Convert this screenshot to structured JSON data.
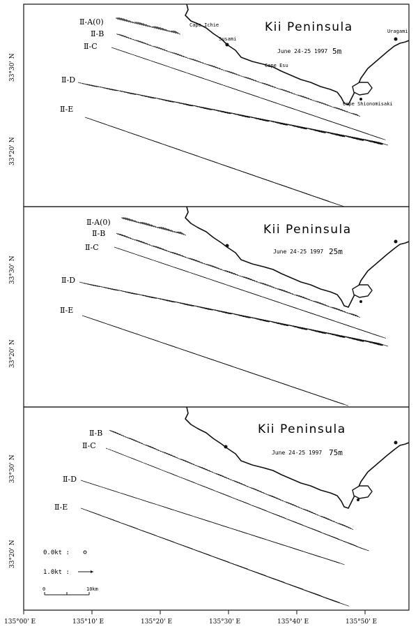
{
  "panels": [
    {
      "title": "Kii Peninsula",
      "date": "June 24-25 1997",
      "depth": "5m",
      "places": [
        "Cape Ichie",
        "Susami",
        "Uragami",
        "Cape Esu",
        "Cape Shionomisaki"
      ],
      "lines": [
        "Ⅱ-A(0)",
        "Ⅱ-B",
        "Ⅱ-C",
        "Ⅱ-D",
        "Ⅱ-E"
      ],
      "lat_labels": [
        "33°30' N",
        "33°20' N"
      ]
    },
    {
      "title": "Kii Peninsula",
      "date": "June 24-25 1997",
      "depth": "25m",
      "lines": [
        "Ⅱ-A(0)",
        "Ⅱ-B",
        "Ⅱ-C",
        "Ⅱ-D",
        "Ⅱ-E"
      ],
      "lat_labels": [
        "33°30' N",
        "33°20' N"
      ]
    },
    {
      "title": "Kii Peninsula",
      "date": "June 24-25 1997",
      "depth": "75m",
      "lines": [
        "Ⅱ-B",
        "Ⅱ-C",
        "Ⅱ-D",
        "Ⅱ-E"
      ],
      "lat_labels": [
        "33°30' N",
        "33°20' N"
      ]
    }
  ],
  "legend": {
    "zero": "0.0kt :",
    "one": "1.0kt :",
    "scale_start": "0",
    "scale_end": "10km"
  },
  "lon_labels": [
    "135°00' E",
    "135°10' E",
    "135°20' E",
    "135°30' E",
    "135°40' E",
    "135°50' E"
  ]
}
